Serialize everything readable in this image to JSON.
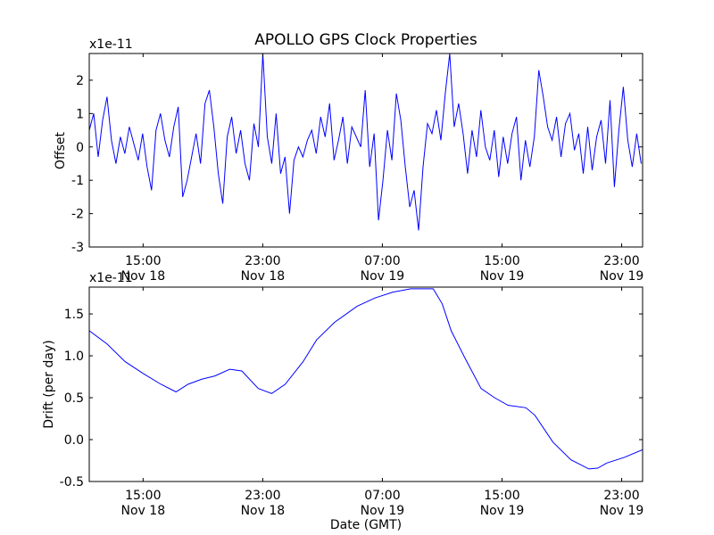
{
  "chart_data": [
    {
      "type": "line",
      "title": "APOLLO GPS Clock Properties",
      "xlabel": "",
      "ylabel": "Offset",
      "y_scale_label": "x1e-11",
      "x_units": "hours since 00:00 Nov 18 (GMT)",
      "xlim": [
        11.4,
        48.4
      ],
      "ylim": [
        -3,
        2.8
      ],
      "yticks": [
        2,
        1,
        0,
        -1,
        -2,
        -3
      ],
      "ytick_labels": [
        "2",
        "1",
        "0",
        "-1",
        "-2",
        "-3"
      ],
      "xticks": [
        15,
        23,
        31,
        39,
        47
      ],
      "xtick_labels": [
        [
          "15:00",
          "Nov 18"
        ],
        [
          "23:00",
          "Nov 18"
        ],
        [
          "07:00",
          "Nov 19"
        ],
        [
          "15:00",
          "Nov 19"
        ],
        [
          "23:00",
          "Nov 19"
        ]
      ],
      "color": "#0000ff",
      "series": [
        {
          "name": "Offset",
          "x_start": 11.4,
          "x_step": 0.2976,
          "values": [
            0.5,
            1.0,
            -0.3,
            0.8,
            1.5,
            0.2,
            -0.5,
            0.3,
            -0.2,
            0.6,
            0.1,
            -0.4,
            0.4,
            -0.6,
            -1.3,
            0.5,
            1.0,
            0.2,
            -0.3,
            0.6,
            1.2,
            -1.5,
            -1.0,
            -0.3,
            0.4,
            -0.5,
            1.3,
            1.7,
            0.6,
            -0.8,
            -1.7,
            0.3,
            0.9,
            -0.2,
            0.5,
            -0.5,
            -1.0,
            0.7,
            0.0,
            2.8,
            0.3,
            -0.5,
            1.0,
            -0.8,
            -0.3,
            -2.0,
            -0.4,
            0.0,
            -0.3,
            0.2,
            0.5,
            -0.2,
            0.9,
            0.3,
            1.3,
            -0.4,
            0.2,
            0.9,
            -0.5,
            0.6,
            0.3,
            0.0,
            1.7,
            -0.6,
            0.4,
            -2.2,
            -1.0,
            0.5,
            -0.4,
            1.6,
            0.8,
            -0.6,
            -1.8,
            -1.3,
            -2.5,
            -0.6,
            0.7,
            0.4,
            1.1,
            0.2,
            1.6,
            2.8,
            0.6,
            1.3,
            0.4,
            -0.8,
            0.5,
            -0.3,
            1.1,
            0.0,
            -0.4,
            0.5,
            -0.9,
            0.3,
            -0.5,
            0.4,
            0.9,
            -1.0,
            0.2,
            -0.6,
            0.3,
            2.3,
            1.5,
            0.6,
            0.2,
            0.9,
            -0.3,
            0.7,
            1.0,
            -0.1,
            0.4,
            -0.8,
            0.6,
            -0.7,
            0.3,
            0.8,
            -0.5,
            1.4,
            -1.2,
            0.5,
            1.8,
            0.2,
            -0.6,
            0.4,
            -0.5
          ]
        }
      ]
    },
    {
      "type": "line",
      "title": "",
      "xlabel": "Date (GMT)",
      "ylabel": "Drift (per day)",
      "y_scale_label": "x1e-11",
      "x_units": "hours since 00:00 Nov 18 (GMT)",
      "xlim": [
        11.4,
        48.4
      ],
      "ylim": [
        -0.5,
        1.82
      ],
      "yticks": [
        1.5,
        1.0,
        0.5,
        0.0,
        -0.5
      ],
      "ytick_labels": [
        "1.5",
        "1.0",
        "0.5",
        "0.0",
        "-0.5"
      ],
      "xticks": [
        15,
        23,
        31,
        39,
        47
      ],
      "xtick_labels": [
        [
          "15:00",
          "Nov 18"
        ],
        [
          "23:00",
          "Nov 18"
        ],
        [
          "07:00",
          "Nov 19"
        ],
        [
          "15:00",
          "Nov 19"
        ],
        [
          "23:00",
          "Nov 19"
        ]
      ],
      "color": "#0000ff",
      "series": [
        {
          "name": "Drift",
          "x": [
            11.4,
            12.6,
            13.8,
            15.0,
            16.2,
            17.2,
            18.0,
            18.9,
            19.8,
            20.8,
            21.6,
            22.7,
            23.6,
            24.5,
            25.7,
            26.6,
            27.8,
            29.3,
            30.5,
            31.7,
            32.9,
            34.4,
            35.0,
            35.6,
            36.5,
            37.6,
            38.5,
            39.4,
            40.6,
            41.2,
            42.4,
            43.6,
            44.8,
            45.4,
            46.0,
            47.2,
            48.4
          ],
          "values": [
            1.3,
            1.14,
            0.93,
            0.79,
            0.66,
            0.57,
            0.66,
            0.72,
            0.76,
            0.84,
            0.82,
            0.61,
            0.55,
            0.66,
            0.93,
            1.19,
            1.4,
            1.59,
            1.69,
            1.76,
            1.8,
            1.8,
            1.62,
            1.3,
            0.98,
            0.61,
            0.5,
            0.41,
            0.38,
            0.29,
            -0.03,
            -0.24,
            -0.35,
            -0.34,
            -0.28,
            -0.21,
            -0.12
          ]
        }
      ]
    }
  ]
}
